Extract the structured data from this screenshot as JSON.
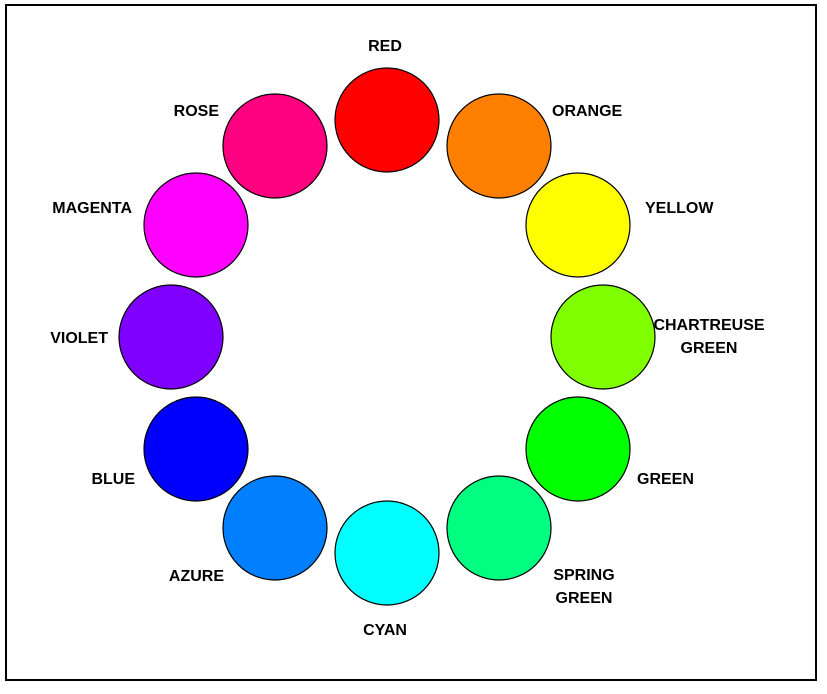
{
  "colors": [
    {
      "name": "red",
      "lines": [
        "RED"
      ],
      "fill": "#FF0000"
    },
    {
      "name": "orange",
      "lines": [
        "ORANGE"
      ],
      "fill": "#FF8000"
    },
    {
      "name": "yellow",
      "lines": [
        "YELLOW"
      ],
      "fill": "#FFFF00"
    },
    {
      "name": "chartreuse-green",
      "lines": [
        "CHARTREUSE",
        "GREEN"
      ],
      "fill": "#80FF00"
    },
    {
      "name": "green",
      "lines": [
        "GREEN"
      ],
      "fill": "#00FF00"
    },
    {
      "name": "spring-green",
      "lines": [
        "SPRING",
        "GREEN"
      ],
      "fill": "#00FF80"
    },
    {
      "name": "cyan",
      "lines": [
        "CYAN"
      ],
      "fill": "#00FFFF"
    },
    {
      "name": "azure",
      "lines": [
        "AZURE"
      ],
      "fill": "#0080FF"
    },
    {
      "name": "blue",
      "lines": [
        "BLUE"
      ],
      "fill": "#0000FF"
    },
    {
      "name": "violet",
      "lines": [
        "VIOLET"
      ],
      "fill": "#8000FF"
    },
    {
      "name": "magenta",
      "lines": [
        "MAGENTA"
      ],
      "fill": "#FF00FF"
    },
    {
      "name": "rose",
      "lines": [
        "ROSE"
      ],
      "fill": "#FF0080"
    }
  ]
}
